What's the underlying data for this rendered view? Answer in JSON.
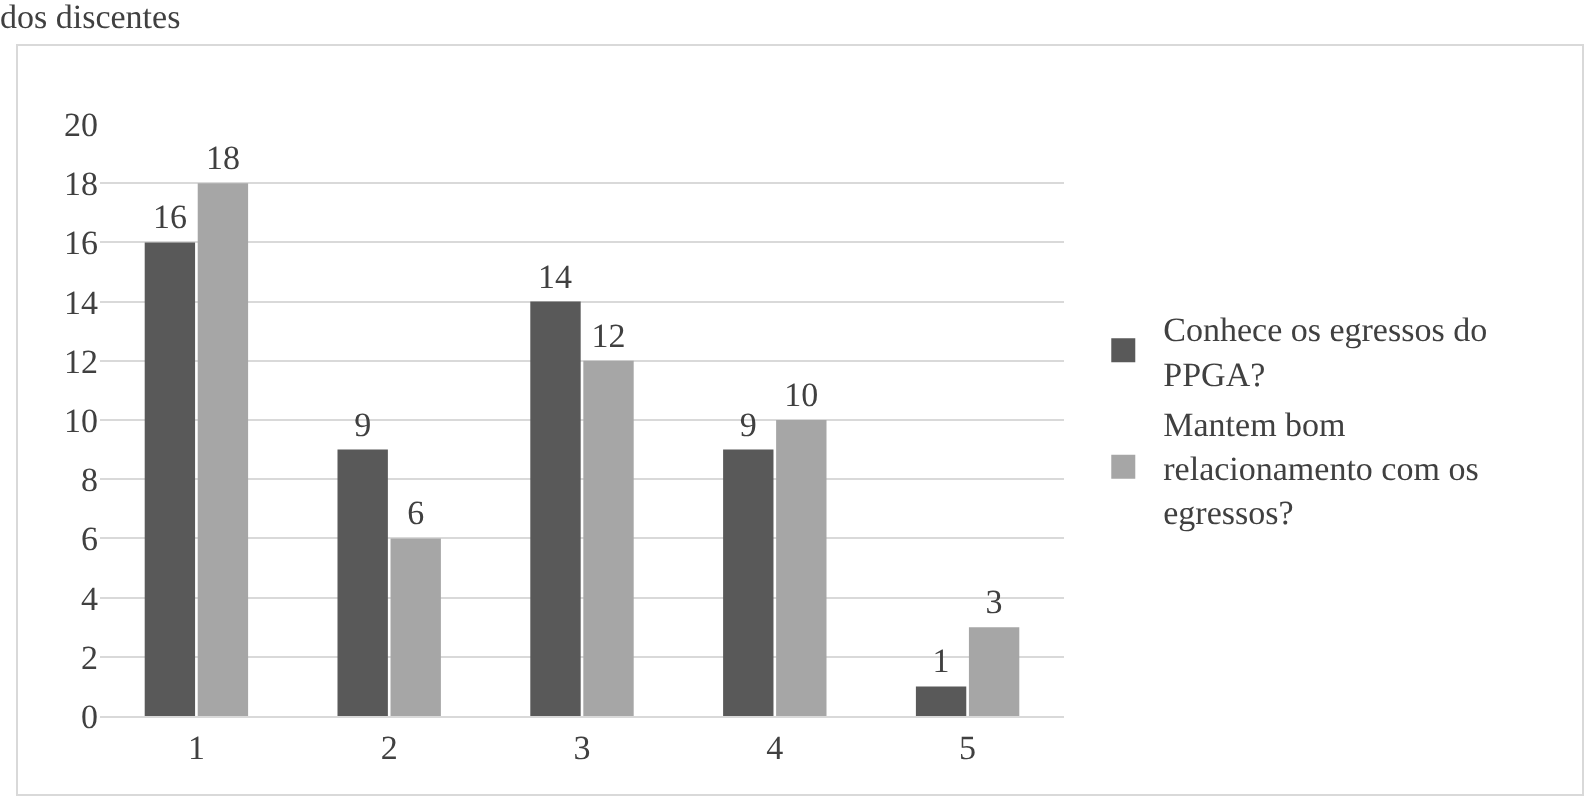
{
  "chart_data": {
    "type": "bar",
    "title": "dos discentes",
    "categories": [
      "1",
      "2",
      "3",
      "4",
      "5"
    ],
    "series": [
      {
        "name": "Conhece os egressos do PPGA?",
        "color": "#595959",
        "values": [
          16,
          9,
          14,
          9,
          1
        ]
      },
      {
        "name": "Mantem bom relacionamento com os egressos?",
        "color": "#a6a6a6",
        "values": [
          18,
          6,
          12,
          10,
          3
        ]
      }
    ],
    "ylim": [
      0,
      20
    ],
    "yticks": [
      0,
      2,
      4,
      6,
      8,
      10,
      12,
      14,
      16,
      18,
      20
    ],
    "grid": "y",
    "legend": "right",
    "data_labels": true
  }
}
